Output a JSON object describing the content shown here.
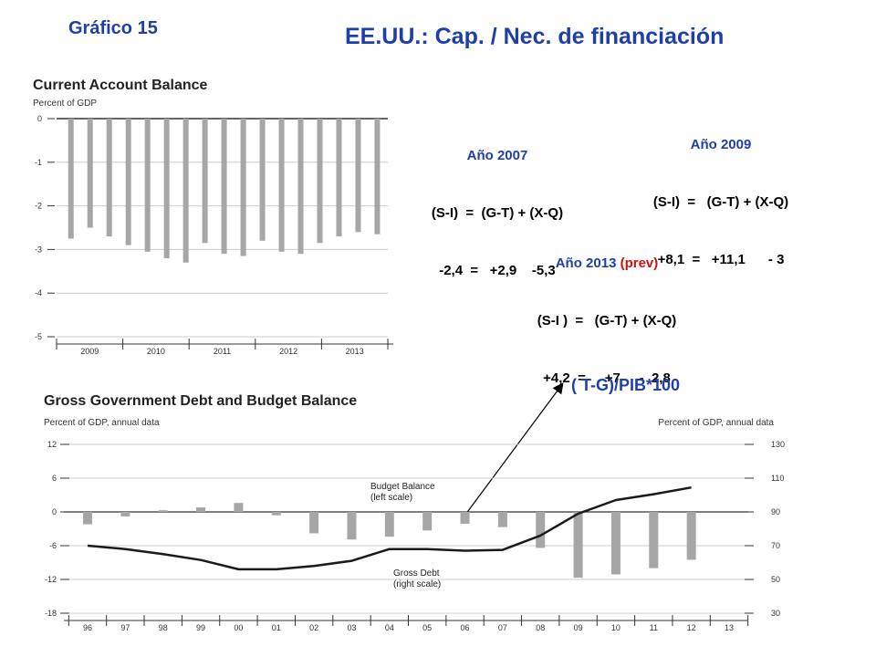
{
  "slide_label": "Gráfico 15",
  "main_title": "EE.UU.: Cap. / Nec. de financiación",
  "equations": [
    {
      "year": "Año 2007",
      "prev": "",
      "formula": "(S-I)  =  (G-T) + (X-Q)",
      "values": "-2,4  =   +2,9    -5,3"
    },
    {
      "year": "Año 2009",
      "prev": "",
      "formula": "(S-I)  =   (G-T) + (X-Q)",
      "values": "+8,1  =   +11,1      - 3"
    },
    {
      "year": "Año 2013",
      "prev": "(prev)",
      "formula": "(S-I )  =   (G-T) + (X-Q)",
      "values": "+4,2  =     +7     -  2,8"
    }
  ],
  "annotation": "( T-G)/PIB*100",
  "colors": {
    "bars": "#a6a6a6",
    "line": "#1a1a1a",
    "title_blue": "#1f3fa8",
    "prev_red": "#d01010",
    "axis": "#333333"
  },
  "chart_data": [
    {
      "type": "bar",
      "title": "Current Account Balance",
      "ylabel": "Percent of GDP",
      "ylim": [
        -5,
        0
      ],
      "yticks": [
        "0",
        "-1",
        "-2",
        "-3",
        "-4",
        "-5"
      ],
      "x_labels": [
        "2009",
        "2010",
        "2011",
        "2012",
        "2013"
      ],
      "values": [
        -2.75,
        -2.5,
        -2.7,
        -2.9,
        -3.05,
        -3.2,
        -3.3,
        -2.85,
        -3.1,
        -3.15,
        -2.8,
        -3.05,
        -3.1,
        -2.85,
        -2.7,
        -2.6,
        -2.65
      ],
      "grid": true
    },
    {
      "type": "bar+line",
      "title": "Gross Government Debt and Budget Balance",
      "ylabel_left": "Percent of GDP, annual data",
      "ylabel_right": "Percent of GDP, annual data",
      "ylim_left": [
        -18,
        12
      ],
      "ylim_right": [
        30,
        130
      ],
      "yticks_left": [
        "12",
        "6",
        "0",
        "-6",
        "-12",
        "-18"
      ],
      "yticks_right": [
        "130",
        "110",
        "90",
        "70",
        "50",
        "30"
      ],
      "categories": [
        "96",
        "97",
        "98",
        "99",
        "00",
        "01",
        "02",
        "03",
        "04",
        "05",
        "06",
        "07",
        "08",
        "09",
        "10",
        "11",
        "12",
        "13"
      ],
      "series": [
        {
          "name": "Budget Balance (left scale)",
          "axis": "left",
          "type": "bar",
          "values": [
            -2.2,
            -0.8,
            0.3,
            0.8,
            1.6,
            -0.6,
            -3.8,
            -4.9,
            -4.4,
            -3.3,
            -2.1,
            -2.7,
            -6.4,
            -11.7,
            -11.1,
            -10.0,
            -8.5,
            null
          ]
        },
        {
          "name": "Gross Debt (right scale)",
          "axis": "right",
          "type": "line",
          "values": [
            70,
            68,
            65,
            61.5,
            56,
            56,
            58,
            61,
            68,
            68,
            67,
            67.5,
            76,
            89,
            97,
            100.5,
            104.5,
            null
          ]
        }
      ],
      "legend_labels": [
        {
          "line1": "Budget Balance",
          "line2": "(left scale)"
        },
        {
          "line1": "Gross Debt",
          "line2": "(right scale)"
        }
      ],
      "grid": true
    }
  ]
}
